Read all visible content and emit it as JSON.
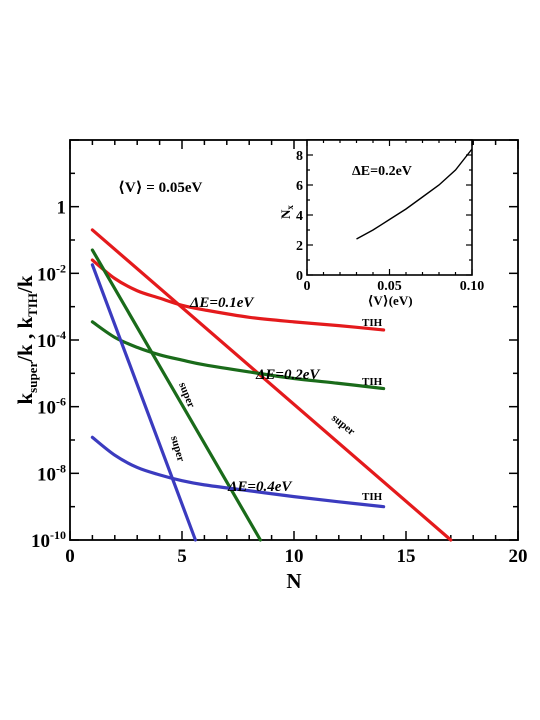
{
  "chart_data": [
    {
      "type": "line",
      "title": "",
      "xlabel": "N",
      "ylabel": "k_super/k , k_TIH/k",
      "y_scale": "log",
      "xlim": [
        0,
        20
      ],
      "ylim": [
        1e-10,
        100
      ],
      "x_ticks": [
        "0",
        "5",
        "10",
        "15",
        "20"
      ],
      "y_ticks": [
        {
          "base": "1",
          "exp": ""
        },
        {
          "base": "10",
          "exp": "-2"
        },
        {
          "base": "10",
          "exp": "-4"
        },
        {
          "base": "10",
          "exp": "-6"
        },
        {
          "base": "10",
          "exp": "-8"
        },
        {
          "base": "10",
          "exp": "-10"
        }
      ],
      "annotation_V": "⟨V⟩ = 0.05eV",
      "series": [
        {
          "name": "ΔE=0.1eV",
          "kind": "TIH",
          "color": "#e41a1c",
          "x": [
            1,
            2,
            3,
            4,
            5,
            6,
            8,
            10,
            12,
            14
          ],
          "y": [
            0.025,
            0.007,
            0.003,
            0.0018,
            0.0011,
            0.0008,
            0.00048,
            0.00035,
            0.00027,
            0.0002
          ]
        },
        {
          "name": "ΔE=0.1eV",
          "kind": "super",
          "color": "#e41a1c",
          "x": [
            1,
            17
          ],
          "y": [
            0.2,
            1e-10
          ]
        },
        {
          "name": "ΔE=0.2eV",
          "kind": "TIH",
          "color": "#1a6b1a",
          "x": [
            1,
            2,
            3,
            4,
            5,
            6,
            8,
            10,
            12,
            14
          ],
          "y": [
            0.00035,
            0.00012,
            6e-05,
            3.6e-05,
            2.5e-05,
            1.8e-05,
            1.1e-05,
            7e-06,
            5e-06,
            3.5e-06
          ]
        },
        {
          "name": "ΔE=0.2eV",
          "kind": "super",
          "color": "#1a6b1a",
          "x": [
            1,
            8.5
          ],
          "y": [
            0.05,
            1e-10
          ]
        },
        {
          "name": "ΔE=0.4eV",
          "kind": "TIH",
          "color": "#3b3bbf",
          "x": [
            1,
            2,
            3,
            4,
            5,
            6,
            8,
            10,
            12,
            14
          ],
          "y": [
            1.2e-07,
            3.5e-08,
            1.5e-08,
            9e-09,
            6e-09,
            4.5e-09,
            3e-09,
            2e-09,
            1.4e-09,
            1e-09
          ]
        },
        {
          "name": "ΔE=0.4eV",
          "kind": "super",
          "color": "#3b3bbf",
          "x": [
            1,
            5.6
          ],
          "y": [
            0.018,
            1e-10
          ]
        }
      ],
      "labels": {
        "tih": "TIH",
        "super": "super",
        "de01": "ΔE=0.1eV",
        "de02": "ΔE=0.2eV",
        "de04": "ΔE=0.4eV"
      }
    },
    {
      "type": "line",
      "title": "ΔE=0.2eV",
      "xlabel": "⟨V⟩(eV)",
      "ylabel": "N_x",
      "xlim": [
        0,
        0.1
      ],
      "ylim": [
        0,
        9
      ],
      "x_ticks": [
        "0",
        "0.05",
        "0.10"
      ],
      "y_ticks": [
        "0",
        "2",
        "4",
        "6",
        "8"
      ],
      "series": [
        {
          "x": [
            0.03,
            0.04,
            0.05,
            0.06,
            0.07,
            0.08,
            0.09,
            0.1
          ],
          "y": [
            2.4,
            3.0,
            3.7,
            4.4,
            5.2,
            6.0,
            7.0,
            8.4
          ]
        }
      ]
    }
  ]
}
